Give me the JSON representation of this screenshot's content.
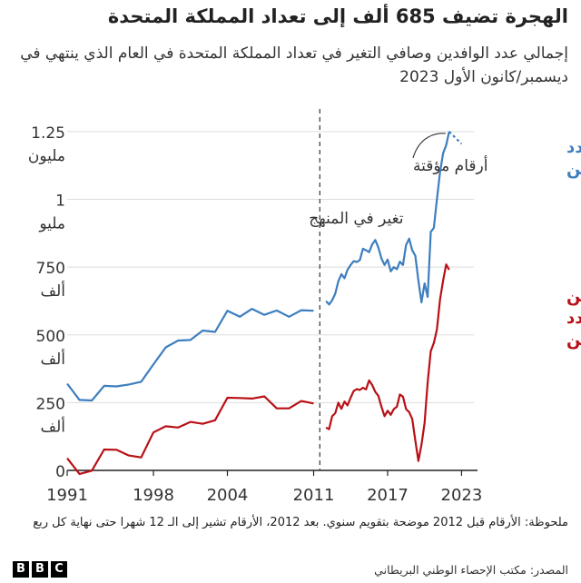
{
  "title": "الهجرة تضيف 685 ألف إلى تعداد المملكة المتحدة",
  "subtitle": "إجمالي عدد الوافدين وصافي التغير في تعداد المملكة المتحدة في العام الذي ينتهي في ديسمبر/كانون الأول 2023",
  "note": "ملحوظة: الأرقام قبل 2012 موضحة بتقويم سنوي. بعد 2012، الأرقام تشير إلى الـ 12 شهرا حتى نهاية كل ربع",
  "source": "المصدر: مكتب الإحصاء الوطني البريطاني",
  "logo": [
    "B",
    "B",
    "C"
  ],
  "colors": {
    "immigration": "#3d7ebf",
    "net": "#b81016",
    "axis": "#222222",
    "grid": "#dddddd"
  },
  "chart_data": {
    "type": "line",
    "x_ticks": [
      "1991",
      "1998",
      "2004",
      "2011",
      "2017",
      "2023"
    ],
    "x_tick_values": [
      1991,
      1998,
      2004,
      2011,
      2017,
      2023
    ],
    "xlim": [
      1991,
      2024
    ],
    "ylim": [
      0,
      1300000
    ],
    "y_ticks": [
      {
        "value": 0,
        "line1": "0",
        "line2": ""
      },
      {
        "value": 250000,
        "line1": "250",
        "line2": "ألف"
      },
      {
        "value": 500000,
        "line1": "500",
        "line2": "ألف"
      },
      {
        "value": 750000,
        "line1": "750",
        "line2": "ألف"
      },
      {
        "value": 1000000,
        "line1": "1",
        "line2": "مليو"
      },
      {
        "value": 1250000,
        "line1": "1.25",
        "line2": "مليون"
      }
    ],
    "break_x": 2011.5,
    "annotations": {
      "method_change": "تغير في المنهج",
      "provisional": "أرقام مؤقتة"
    },
    "series": [
      {
        "name": "إجمال عدد الوافدين",
        "label_lines": [
          "إجمال عدد",
          "الوافدين"
        ],
        "key": "immigration",
        "segments": [
          [
            [
              1991,
              320000
            ],
            [
              1992,
              260000
            ],
            [
              1993,
              258000
            ],
            [
              1994,
              312000
            ],
            [
              1995,
              310000
            ],
            [
              1996,
              317000
            ],
            [
              1997,
              327000
            ],
            [
              1998,
              391000
            ],
            [
              1999,
              454000
            ],
            [
              2000,
              479000
            ],
            [
              2001,
              481000
            ],
            [
              2002,
              516000
            ],
            [
              2003,
              511000
            ],
            [
              2004,
              589000
            ],
            [
              2005,
              567000
            ],
            [
              2006,
              596000
            ],
            [
              2007,
              574000
            ],
            [
              2008,
              590000
            ],
            [
              2009,
              567000
            ],
            [
              2010,
              591000
            ],
            [
              2011,
              589000
            ]
          ],
          [
            [
              2012.0,
              625000
            ],
            [
              2012.25,
              612000
            ],
            [
              2012.5,
              628000
            ],
            [
              2012.75,
              652000
            ],
            [
              2013.0,
              698000
            ],
            [
              2013.25,
              724000
            ],
            [
              2013.5,
              709000
            ],
            [
              2013.75,
              740000
            ],
            [
              2014.0,
              758000
            ],
            [
              2014.25,
              772000
            ],
            [
              2014.5,
              769000
            ],
            [
              2014.75,
              776000
            ],
            [
              2015.0,
              818000
            ],
            [
              2015.25,
              812000
            ],
            [
              2015.5,
              805000
            ],
            [
              2015.75,
              834000
            ],
            [
              2016.0,
              850000
            ],
            [
              2016.25,
              822000
            ],
            [
              2016.5,
              782000
            ],
            [
              2016.75,
              758000
            ],
            [
              2017.0,
              778000
            ],
            [
              2017.25,
              734000
            ],
            [
              2017.5,
              750000
            ],
            [
              2017.75,
              742000
            ],
            [
              2018.0,
              770000
            ],
            [
              2018.25,
              758000
            ],
            [
              2018.5,
              832000
            ],
            [
              2018.75,
              855000
            ],
            [
              2019.0,
              812000
            ],
            [
              2019.25,
              792000
            ],
            [
              2019.5,
              700000
            ],
            [
              2019.75,
              620000
            ],
            [
              2020.0,
              690000
            ],
            [
              2020.25,
              640000
            ],
            [
              2020.5,
              880000
            ],
            [
              2020.75,
              895000
            ],
            [
              2021.0,
              1000000
            ],
            [
              2021.25,
              1100000
            ],
            [
              2021.5,
              1170000
            ],
            [
              2021.75,
              1200000
            ],
            [
              2022.0,
              1250000
            ]
          ]
        ],
        "projected": [
          [
            2022.0,
            1250000
          ],
          [
            2023.0,
            1205000
          ]
        ]
      },
      {
        "name": "عدد الوافدين ناقص عدد الخارجين",
        "label_lines": [
          "عدد الوافدين",
          "ناقص عدد",
          "الخارجين"
        ],
        "key": "net",
        "segments": [
          [
            [
              1991,
              45000
            ],
            [
              1992,
              -13000
            ],
            [
              1993,
              -1000
            ],
            [
              1994,
              77000
            ],
            [
              1995,
              76000
            ],
            [
              1996,
              55000
            ],
            [
              1997,
              48000
            ],
            [
              1998,
              140000
            ],
            [
              1999,
              163000
            ],
            [
              2000,
              158000
            ],
            [
              2001,
              179000
            ],
            [
              2002,
              172000
            ],
            [
              2003,
              185000
            ],
            [
              2004,
              268000
            ],
            [
              2005,
              267000
            ],
            [
              2006,
              265000
            ],
            [
              2007,
              273000
            ],
            [
              2008,
              229000
            ],
            [
              2009,
              229000
            ],
            [
              2010,
              256000
            ],
            [
              2011,
              247000
            ]
          ],
          [
            [
              2012.0,
              158000
            ],
            [
              2012.25,
              152000
            ],
            [
              2012.5,
              200000
            ],
            [
              2012.75,
              211000
            ],
            [
              2013.0,
              250000
            ],
            [
              2013.25,
              227000
            ],
            [
              2013.5,
              254000
            ],
            [
              2013.75,
              240000
            ],
            [
              2014.0,
              268000
            ],
            [
              2014.25,
              293000
            ],
            [
              2014.5,
              300000
            ],
            [
              2014.75,
              297000
            ],
            [
              2015.0,
              305000
            ],
            [
              2015.25,
              299000
            ],
            [
              2015.5,
              332000
            ],
            [
              2015.75,
              315000
            ],
            [
              2016.0,
              290000
            ],
            [
              2016.25,
              275000
            ],
            [
              2016.5,
              235000
            ],
            [
              2016.75,
              200000
            ],
            [
              2017.0,
              220000
            ],
            [
              2017.25,
              205000
            ],
            [
              2017.5,
              226000
            ],
            [
              2017.75,
              235000
            ],
            [
              2018.0,
              280000
            ],
            [
              2018.25,
              272000
            ],
            [
              2018.5,
              226000
            ],
            [
              2018.75,
              215000
            ],
            [
              2019.0,
              190000
            ],
            [
              2019.25,
              110000
            ],
            [
              2019.5,
              35000
            ],
            [
              2019.75,
              95000
            ],
            [
              2020.0,
              175000
            ],
            [
              2020.25,
              325000
            ],
            [
              2020.5,
              440000
            ],
            [
              2020.75,
              470000
            ],
            [
              2021.0,
              520000
            ],
            [
              2021.25,
              630000
            ],
            [
              2021.5,
              700000
            ],
            [
              2021.75,
              760000
            ],
            [
              2022.0,
              740000
            ]
          ]
        ]
      }
    ]
  }
}
